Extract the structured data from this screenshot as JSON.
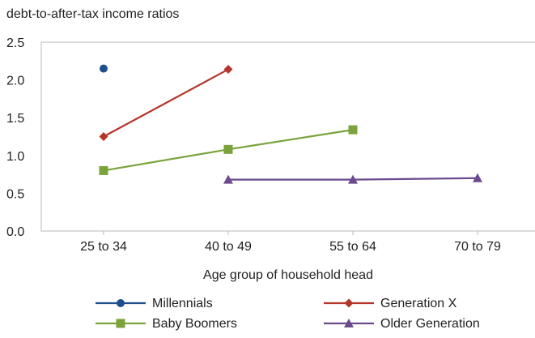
{
  "chart_data": {
    "type": "line",
    "ylabel": "debt-to-after-tax income ratios",
    "xlabel": "Age group of household head",
    "categories": [
      "25 to 34",
      "40 to 49",
      "55 to 64",
      "70 to 79"
    ],
    "ylim": [
      0,
      2.5
    ],
    "yticks": [
      "0.0",
      "0.5",
      "1.0",
      "1.5",
      "2.0",
      "2.5"
    ],
    "grid": false,
    "legend_position": "bottom",
    "series": [
      {
        "name": "Millennials",
        "color": "#1f4e8c",
        "marker": "circle",
        "values": [
          2.15,
          null,
          null,
          null
        ]
      },
      {
        "name": "Generation X",
        "color": "#b5352a",
        "marker": "diamond",
        "values": [
          1.25,
          2.14,
          null,
          null
        ]
      },
      {
        "name": "Baby Boomers",
        "color": "#7aa33c",
        "marker": "square",
        "values": [
          0.8,
          1.08,
          1.34,
          null
        ]
      },
      {
        "name": "Older Generation",
        "color": "#6b4a8f",
        "marker": "triangle",
        "values": [
          null,
          0.68,
          0.68,
          0.7
        ]
      }
    ]
  }
}
